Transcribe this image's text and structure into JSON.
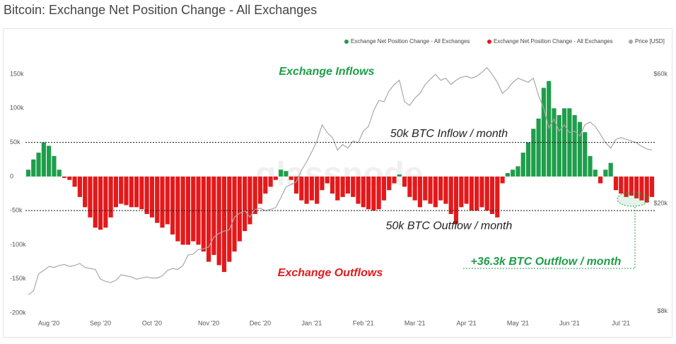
{
  "chart_data": {
    "type": "bar",
    "title": "Bitcoin: Exchange Net Position Change - All Exchanges",
    "watermark": "glassnode",
    "categories": [
      null,
      null,
      null,
      null,
      "Aug '20",
      null,
      null,
      null,
      null,
      null,
      null,
      null,
      null,
      null,
      "Sep '20",
      null,
      null,
      null,
      null,
      null,
      null,
      null,
      null,
      null,
      "Oct '20",
      null,
      null,
      null,
      null,
      null,
      null,
      null,
      null,
      null,
      null,
      "Nov '20",
      null,
      null,
      null,
      null,
      null,
      null,
      null,
      null,
      null,
      "Dec '20",
      null,
      null,
      null,
      null,
      null,
      null,
      null,
      null,
      null,
      "Jan '21",
      null,
      null,
      null,
      null,
      null,
      null,
      null,
      null,
      null,
      "Feb '21",
      null,
      null,
      null,
      null,
      null,
      null,
      null,
      null,
      null,
      "Mar '21",
      null,
      null,
      null,
      null,
      null,
      null,
      null,
      null,
      null,
      "Apr '21",
      null,
      null,
      null,
      null,
      null,
      null,
      null,
      null,
      null,
      "May '21",
      null,
      null,
      null,
      null,
      null,
      null,
      null,
      null,
      null,
      "Jun '21",
      null,
      null,
      null,
      null,
      null,
      null,
      null,
      null,
      null,
      "Jul '21",
      null,
      null,
      null,
      null,
      null,
      null
    ],
    "series": [
      {
        "name": "Exchange Net Position Change - All Exchanges",
        "color": "#1e9e4a",
        "values": [
          10000,
          25000,
          35000,
          50000,
          45000,
          30000,
          10000,
          null,
          null,
          null,
          null,
          null,
          null,
          null,
          null,
          null,
          null,
          null,
          null,
          null,
          null,
          null,
          null,
          null,
          null,
          null,
          null,
          null,
          null,
          null,
          null,
          null,
          null,
          null,
          null,
          null,
          null,
          null,
          null,
          null,
          null,
          null,
          null,
          null,
          null,
          null,
          null,
          null,
          null,
          10000,
          8000,
          null,
          null,
          null,
          null,
          null,
          null,
          null,
          null,
          null,
          null,
          null,
          null,
          null,
          null,
          null,
          null,
          null,
          null,
          null,
          null,
          null,
          3000,
          null,
          null,
          null,
          null,
          null,
          null,
          null,
          null,
          null,
          null,
          null,
          null,
          null,
          null,
          null,
          null,
          null,
          null,
          null,
          null,
          5000,
          10000,
          15000,
          35000,
          50000,
          70000,
          85000,
          130000,
          140000,
          100000,
          90000,
          100000,
          100000,
          90000,
          80000,
          65000,
          30000,
          10000,
          null,
          10000,
          20000,
          null,
          null,
          null,
          null,
          null,
          null,
          null,
          null
        ]
      },
      {
        "name": "Exchange Net Position Change - All Exchanges",
        "color": "#e3191b",
        "values": [
          null,
          null,
          null,
          null,
          null,
          null,
          null,
          -2000,
          -5000,
          -15000,
          -30000,
          -45000,
          -60000,
          -75000,
          -78000,
          -75000,
          -60000,
          -45000,
          -40000,
          -42000,
          -45000,
          -45000,
          -48000,
          -55000,
          -60000,
          -68000,
          -75000,
          -70000,
          -85000,
          -95000,
          -100000,
          -100000,
          -95000,
          -100000,
          -110000,
          -125000,
          -115000,
          -130000,
          -140000,
          -125000,
          -110000,
          -95000,
          -80000,
          -70000,
          -55000,
          -40000,
          -25000,
          -15000,
          -5000,
          null,
          null,
          -5000,
          -25000,
          -35000,
          -40000,
          -35000,
          -40000,
          -20000,
          -10000,
          -25000,
          -35000,
          -30000,
          -25000,
          -30000,
          -40000,
          -45000,
          -48000,
          -50000,
          -48000,
          -35000,
          -20000,
          -10000,
          null,
          -15000,
          -30000,
          -35000,
          -45000,
          -35000,
          -40000,
          -45000,
          -35000,
          -40000,
          -55000,
          -70000,
          -45000,
          -40000,
          -50000,
          -50000,
          -45000,
          -50000,
          -55000,
          -60000,
          -10000,
          null,
          null,
          null,
          null,
          null,
          null,
          null,
          null,
          null,
          null,
          null,
          null,
          null,
          null,
          null,
          null,
          null,
          null,
          -10000,
          null,
          null,
          -20000,
          -25000,
          -30000,
          -28000,
          -32000,
          -35000,
          -38000,
          -30000
        ]
      },
      {
        "name": "Price [USD]",
        "color": "#a8a8a8",
        "type": "line",
        "axis": "y2",
        "values": [
          9200,
          9500,
          11000,
          11300,
          11700,
          11600,
          11800,
          11900,
          11700,
          11800,
          12000,
          11600,
          11500,
          11400,
          10500,
          10300,
          10200,
          10400,
          10900,
          10800,
          10700,
          10500,
          10600,
          10700,
          10600,
          10600,
          10800,
          11300,
          11500,
          11400,
          11800,
          12900,
          13000,
          13500,
          13600,
          13800,
          15000,
          15500,
          15800,
          16000,
          17800,
          18400,
          18800,
          17800,
          19000,
          19200,
          18800,
          19000,
          19300,
          21000,
          23000,
          23500,
          24000,
          26500,
          28500,
          31000,
          34000,
          39000,
          36500,
          35000,
          31500,
          33000,
          32000,
          34000,
          33500,
          37000,
          38500,
          44000,
          48000,
          47500,
          52000,
          55000,
          57000,
          47500,
          46000,
          49000,
          51000,
          55000,
          57500,
          60000,
          57000,
          58000,
          55000,
          57000,
          58500,
          59000,
          58000,
          59000,
          61000,
          63500,
          60000,
          56000,
          51000,
          53000,
          56000,
          58000,
          57000,
          56000,
          58000,
          50000,
          45000,
          38000,
          41000,
          37000,
          39000,
          36500,
          37000,
          35500,
          39000,
          40000,
          38500,
          36000,
          33500,
          32000,
          34500,
          35000,
          34500,
          34000,
          33500,
          32500,
          31800,
          31500
        ]
      }
    ],
    "ylim": [
      -200000,
      160000
    ],
    "yticks": [
      {
        "value": -200000,
        "label": "-200k"
      },
      {
        "value": -150000,
        "label": "-150k"
      },
      {
        "value": -100000,
        "label": "-100k"
      },
      {
        "value": -50000,
        "label": "-50k"
      },
      0,
      {
        "value": 50000,
        "label": "50k"
      },
      {
        "value": 100000,
        "label": "100k"
      },
      {
        "value": 150000,
        "label": "150k"
      }
    ],
    "y2lim": [
      7880,
      63600
    ],
    "y2log": true,
    "y2ticks": [
      {
        "value": 8000,
        "label": "$8k"
      },
      {
        "value": 20000,
        "label": "$20k"
      },
      {
        "value": 60000,
        "label": "$60k"
      }
    ],
    "reference_lines": [
      {
        "value": 50000,
        "label": "50k BTC Inflow / month"
      },
      {
        "value": -50000,
        "label": "50k BTC Outflow / month"
      }
    ],
    "annotations": [
      {
        "text": "Exchange Inflows",
        "color": "#1e9e4a"
      },
      {
        "text": "Exchange Outflows",
        "color": "#e3191b"
      },
      {
        "text": "+36.3k BTC Outflow / month",
        "color": "#1e9e4a"
      }
    ]
  }
}
